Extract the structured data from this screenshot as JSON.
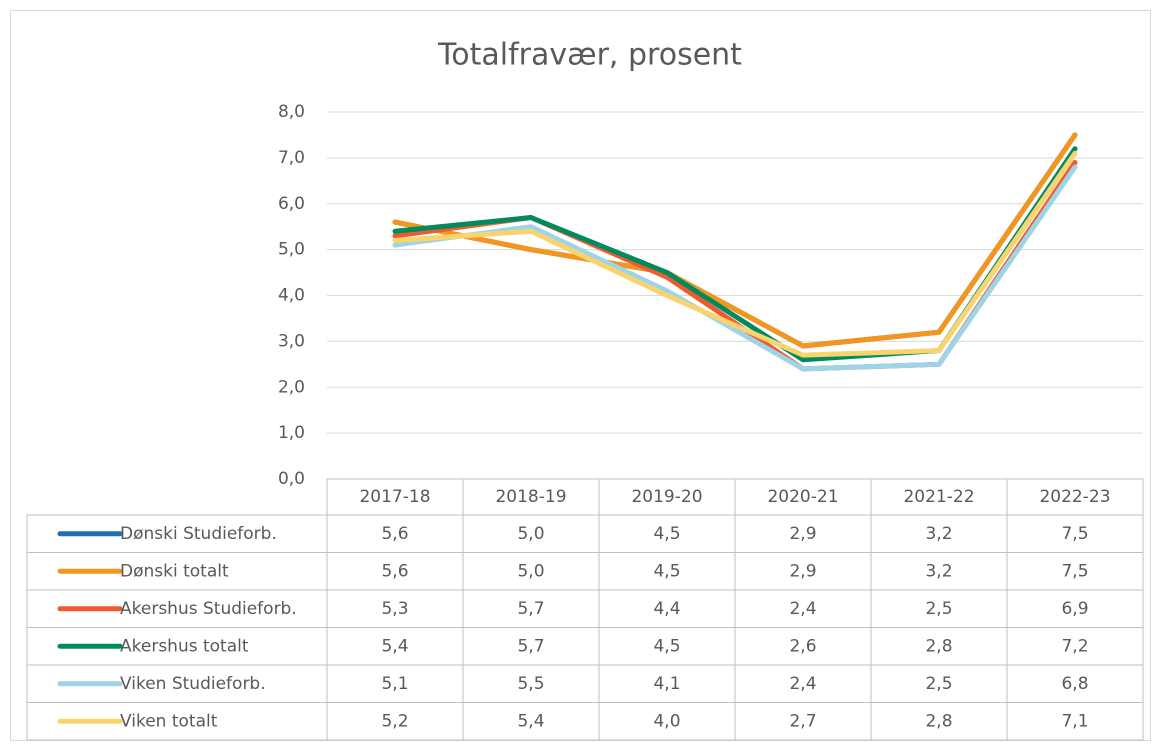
{
  "chart_data": {
    "type": "line",
    "title": "Totalfravær, prosent",
    "categories": [
      "2017-18",
      "2018-19",
      "2019-20",
      "2020-21",
      "2021-22",
      "2022-23"
    ],
    "series": [
      {
        "name": "Dønski Studieforb.",
        "color": "#1f6fb4",
        "values": [
          5.6,
          5.0,
          4.5,
          2.9,
          3.2,
          7.5
        ],
        "value_labels": [
          "5,6",
          "5,0",
          "4,5",
          "2,9",
          "3,2",
          "7,5"
        ]
      },
      {
        "name": "Dønski totalt",
        "color": "#f4961e",
        "values": [
          5.6,
          5.0,
          4.5,
          2.9,
          3.2,
          7.5
        ],
        "value_labels": [
          "5,6",
          "5,0",
          "4,5",
          "2,9",
          "3,2",
          "7,5"
        ]
      },
      {
        "name": "Akershus Studieforb.",
        "color": "#f05a30",
        "values": [
          5.3,
          5.7,
          4.4,
          2.4,
          2.5,
          6.9
        ],
        "value_labels": [
          "5,3",
          "5,7",
          "4,4",
          "2,4",
          "2,5",
          "6,9"
        ]
      },
      {
        "name": "Akershus totalt",
        "color": "#008a5e",
        "values": [
          5.4,
          5.7,
          4.5,
          2.6,
          2.8,
          7.2
        ],
        "value_labels": [
          "5,4",
          "5,7",
          "4,5",
          "2,6",
          "2,8",
          "7,2"
        ]
      },
      {
        "name": "Viken Studieforb.",
        "color": "#9ed4e8",
        "values": [
          5.1,
          5.5,
          4.1,
          2.4,
          2.5,
          6.8
        ],
        "value_labels": [
          "5,1",
          "5,5",
          "4,1",
          "2,4",
          "2,5",
          "6,8"
        ]
      },
      {
        "name": "Viken totalt",
        "color": "#f9d46e",
        "values": [
          5.2,
          5.4,
          4.0,
          2.7,
          2.8,
          7.1
        ],
        "value_labels": [
          "5,2",
          "5,4",
          "4,0",
          "2,7",
          "2,8",
          "7,1"
        ]
      }
    ],
    "ylim": [
      0,
      8
    ],
    "yticks": [
      {
        "value": 0,
        "label": "0,0"
      },
      {
        "value": 1,
        "label": "1,0"
      },
      {
        "value": 2,
        "label": "2,0"
      },
      {
        "value": 3,
        "label": "3,0"
      },
      {
        "value": 4,
        "label": "4,0"
      },
      {
        "value": 5,
        "label": "5,0"
      },
      {
        "value": 6,
        "label": "6,0"
      },
      {
        "value": 7,
        "label": "7,0"
      },
      {
        "value": 8,
        "label": "8,0"
      }
    ],
    "grid": true
  }
}
